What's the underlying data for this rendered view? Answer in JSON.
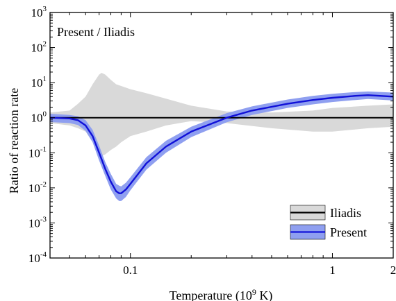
{
  "chart_data": {
    "type": "line",
    "annotation": "Present / Iliadis",
    "xlabel_main": "Temperature (10",
    "xlabel_exp": "9",
    "xlabel_unit": " K)",
    "ylabel": "Ratio of reaction rate",
    "x_scale": "log",
    "y_scale": "log",
    "xlim": [
      0.04,
      2
    ],
    "ylim": [
      0.0001,
      1000
    ],
    "x_ticks": [
      {
        "value": 0.1,
        "label": "0.1"
      },
      {
        "value": 1,
        "label": "1"
      },
      {
        "value": 2,
        "label": "2"
      }
    ],
    "y_ticks": [
      {
        "value": 0.0001,
        "base": "10",
        "exp": "-4"
      },
      {
        "value": 0.001,
        "base": "10",
        "exp": "-3"
      },
      {
        "value": 0.01,
        "base": "10",
        "exp": "-2"
      },
      {
        "value": 0.1,
        "base": "10",
        "exp": "-1"
      },
      {
        "value": 1,
        "base": "10",
        "exp": "0"
      },
      {
        "value": 10,
        "base": "10",
        "exp": "1"
      },
      {
        "value": 100,
        "base": "10",
        "exp": "2"
      },
      {
        "value": 1000,
        "base": "10",
        "exp": "3"
      }
    ],
    "legend_position": "bottom-right",
    "colors": {
      "iliadis_line": "#000000",
      "iliadis_band": "#d9d9d9",
      "present_line": "#1010d8",
      "present_band": "#8f9ff0"
    },
    "series": [
      {
        "name": "Iliadis",
        "x": [
          0.04,
          0.05,
          0.055,
          0.06,
          0.065,
          0.07,
          0.072,
          0.075,
          0.08,
          0.085,
          0.09,
          0.1,
          0.12,
          0.15,
          0.2,
          0.3,
          0.5,
          0.8,
          1,
          1.5,
          2
        ],
        "y": [
          1,
          1,
          1,
          1,
          1,
          1,
          1,
          1,
          1,
          1,
          1,
          1,
          1,
          1,
          1,
          1,
          1,
          1,
          1,
          1,
          1
        ],
        "upper": [
          1.4,
          1.6,
          2.5,
          4,
          9,
          17,
          19,
          17,
          12,
          9,
          8,
          6.5,
          5,
          3.5,
          2.2,
          1.5,
          1.4,
          1.6,
          1.9,
          2.2,
          2.4
        ],
        "lower": [
          0.7,
          0.6,
          0.5,
          0.4,
          0.2,
          0.1,
          0.08,
          0.09,
          0.12,
          0.15,
          0.2,
          0.3,
          0.4,
          0.6,
          0.8,
          0.7,
          0.5,
          0.4,
          0.4,
          0.5,
          0.55
        ]
      },
      {
        "name": "Present",
        "x": [
          0.04,
          0.05,
          0.055,
          0.06,
          0.065,
          0.07,
          0.075,
          0.08,
          0.085,
          0.088,
          0.09,
          0.095,
          0.1,
          0.12,
          0.15,
          0.2,
          0.3,
          0.4,
          0.6,
          0.8,
          1,
          1.3,
          1.5,
          2
        ],
        "y": [
          1,
          0.95,
          0.85,
          0.6,
          0.3,
          0.1,
          0.035,
          0.015,
          0.008,
          0.007,
          0.007,
          0.009,
          0.013,
          0.05,
          0.15,
          0.4,
          1.0,
          1.6,
          2.5,
          3.2,
          3.7,
          4.2,
          4.4,
          4.0
        ],
        "upper": [
          1.3,
          1.2,
          1.1,
          0.85,
          0.45,
          0.16,
          0.055,
          0.025,
          0.013,
          0.0115,
          0.011,
          0.014,
          0.02,
          0.075,
          0.22,
          0.55,
          1.35,
          2.1,
          3.3,
          4.2,
          4.8,
          5.4,
          5.6,
          5.2
        ],
        "lower": [
          0.75,
          0.7,
          0.62,
          0.42,
          0.2,
          0.06,
          0.022,
          0.009,
          0.005,
          0.0042,
          0.0042,
          0.0055,
          0.0085,
          0.033,
          0.1,
          0.28,
          0.74,
          1.2,
          1.9,
          2.4,
          2.8,
          3.2,
          3.4,
          3.1
        ]
      }
    ]
  }
}
